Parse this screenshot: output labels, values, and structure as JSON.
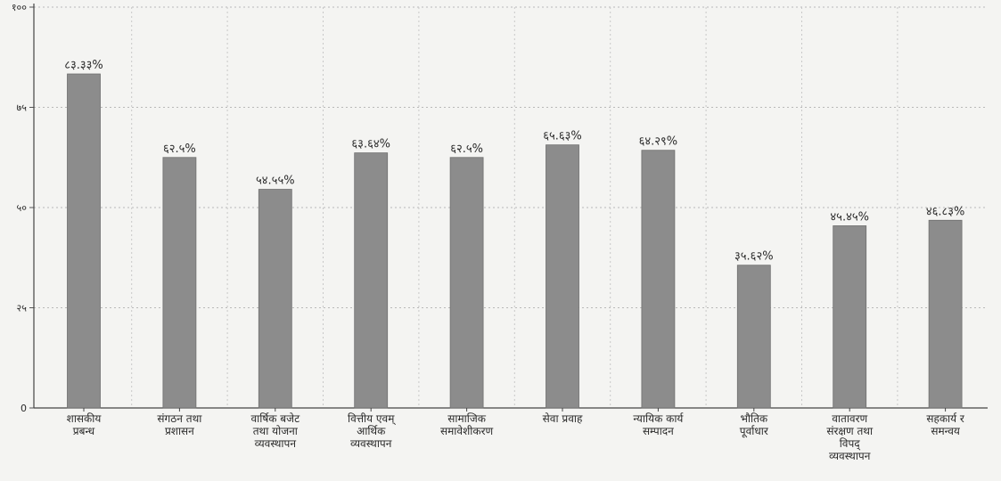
{
  "chart_data": {
    "type": "bar",
    "title": "",
    "xlabel": "",
    "ylabel": "",
    "ylim": [
      0,
      100
    ],
    "yticks": [
      {
        "value": 0,
        "label": "0"
      },
      {
        "value": 25,
        "label": "२५"
      },
      {
        "value": 50,
        "label": "५०"
      },
      {
        "value": 75,
        "label": "७५"
      },
      {
        "value": 100,
        "label": "१००"
      }
    ],
    "grid": true,
    "bar_color": "#8c8c8c",
    "categories": [
      {
        "lines": [
          "शासकीय",
          "प्रबन्ध"
        ]
      },
      {
        "lines": [
          "संगठन तथा",
          "प्रशासन"
        ]
      },
      {
        "lines": [
          "वार्षिक बजेट",
          "तथा योजना",
          "व्यवस्थापन"
        ]
      },
      {
        "lines": [
          "वित्तीय एवम्",
          "आर्थिक",
          "व्यवस्थापन"
        ]
      },
      {
        "lines": [
          "सामाजिक",
          "समावेशीकरण"
        ]
      },
      {
        "lines": [
          "सेवा प्रवाह"
        ]
      },
      {
        "lines": [
          "न्यायिक कार्य",
          "सम्पादन"
        ]
      },
      {
        "lines": [
          "भौतिक",
          "पूर्वाधार"
        ]
      },
      {
        "lines": [
          "वातावरण",
          "संरक्षण तथा",
          "विपद्",
          "व्यवस्थापन"
        ]
      },
      {
        "lines": [
          "सहकार्य र",
          "समन्वय"
        ]
      }
    ],
    "values": [
      83.33,
      62.5,
      54.55,
      63.64,
      62.5,
      65.63,
      64.29,
      35.62,
      45.45,
      46.83
    ],
    "data_labels": [
      "८३.३३%",
      "६२.५%",
      "५४.५५%",
      "६३.६४%",
      "६२.५%",
      "६५.६३%",
      "६४.२९%",
      "३५.६२%",
      "४५.४५%",
      "४६.८३%"
    ]
  }
}
